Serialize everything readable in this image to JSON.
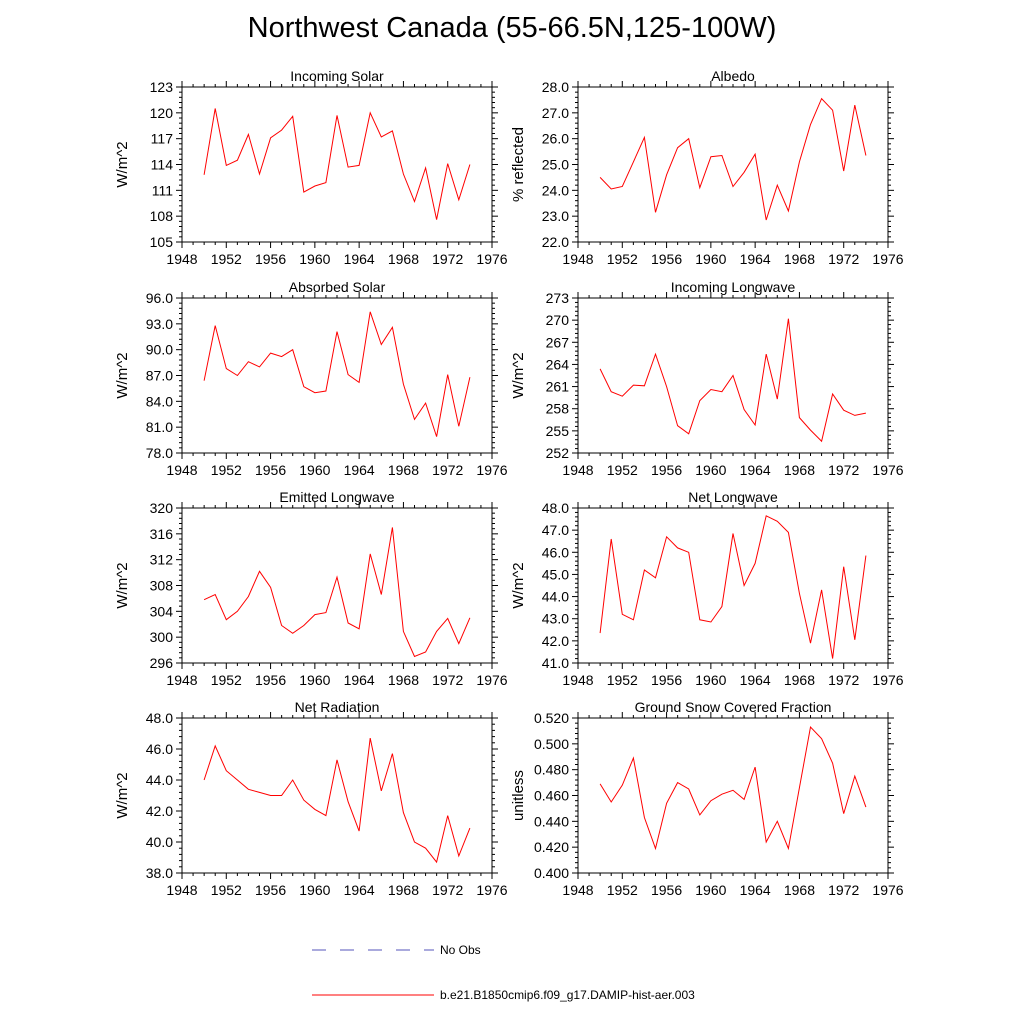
{
  "title": "Northwest Canada (55-66.5N,125-100W)",
  "colors": {
    "model_line": "#ff0000",
    "obs_line": "#5555bb",
    "axis": "#000000"
  },
  "legend": [
    {
      "label": "No Obs",
      "style": "dashed",
      "color": "#5555bb"
    },
    {
      "label": "b.e21.B1850cmip6.f09_g17.DAMIP-hist-aer.003",
      "style": "solid",
      "color": "#ff0000"
    }
  ],
  "chart_data": [
    {
      "type": "line",
      "title": "Incoming Solar",
      "xlabel": "",
      "ylabel": "W/m^2",
      "xlim": [
        1948,
        1976
      ],
      "ylim": [
        105,
        123
      ],
      "xticks": [
        "1948",
        "1952",
        "1956",
        "1960",
        "1964",
        "1968",
        "1972",
        "1976"
      ],
      "yticks": [
        "105",
        "108",
        "111",
        "114",
        "117",
        "120",
        "123"
      ],
      "x": [
        1950,
        1951,
        1952,
        1953,
        1954,
        1955,
        1956,
        1957,
        1958,
        1959,
        1960,
        1961,
        1962,
        1963,
        1964,
        1965,
        1966,
        1967,
        1968,
        1969,
        1970,
        1971,
        1972,
        1973,
        1974
      ],
      "series": [
        {
          "name": "b.e21.B1850cmip6.f09_g17.DAMIP-hist-aer.003",
          "values": [
            112.8,
            120.5,
            113.9,
            114.5,
            117.5,
            112.9,
            117.1,
            118.0,
            119.6,
            110.8,
            111.5,
            111.9,
            119.7,
            113.7,
            113.9,
            120.0,
            117.2,
            117.9,
            112.9,
            109.7,
            113.6,
            107.6,
            114.1,
            109.9,
            114.0
          ]
        }
      ]
    },
    {
      "type": "line",
      "title": "Albedo",
      "xlabel": "",
      "ylabel": "% reflected",
      "xlim": [
        1948,
        1976
      ],
      "ylim": [
        22.0,
        28.0
      ],
      "xticks": [
        "1948",
        "1952",
        "1956",
        "1960",
        "1964",
        "1968",
        "1972",
        "1976"
      ],
      "yticks": [
        "22.0",
        "23.0",
        "24.0",
        "25.0",
        "26.0",
        "27.0",
        "28.0"
      ],
      "x": [
        1950,
        1951,
        1952,
        1953,
        1954,
        1955,
        1956,
        1957,
        1958,
        1959,
        1960,
        1961,
        1962,
        1963,
        1964,
        1965,
        1966,
        1967,
        1968,
        1969,
        1970,
        1971,
        1972,
        1973,
        1974
      ],
      "series": [
        {
          "name": "b.e21.B1850cmip6.f09_g17.DAMIP-hist-aer.003",
          "values": [
            24.5,
            24.05,
            24.15,
            25.1,
            26.05,
            23.15,
            24.6,
            25.65,
            26.0,
            24.1,
            25.3,
            25.35,
            24.15,
            24.7,
            25.4,
            22.85,
            24.2,
            23.2,
            25.1,
            26.55,
            27.55,
            27.1,
            24.75,
            27.3,
            25.35
          ]
        }
      ]
    },
    {
      "type": "line",
      "title": "Absorbed Solar",
      "xlabel": "",
      "ylabel": "W/m^2",
      "xlim": [
        1948,
        1976
      ],
      "ylim": [
        78.0,
        96.0
      ],
      "xticks": [
        "1948",
        "1952",
        "1956",
        "1960",
        "1964",
        "1968",
        "1972",
        "1976"
      ],
      "yticks": [
        "78.0",
        "81.0",
        "84.0",
        "87.0",
        "90.0",
        "93.0",
        "96.0"
      ],
      "x": [
        1950,
        1951,
        1952,
        1953,
        1954,
        1955,
        1956,
        1957,
        1958,
        1959,
        1960,
        1961,
        1962,
        1963,
        1964,
        1965,
        1966,
        1967,
        1968,
        1969,
        1970,
        1971,
        1972,
        1973,
        1974
      ],
      "series": [
        {
          "name": "b.e21.B1850cmip6.f09_g17.DAMIP-hist-aer.003",
          "values": [
            86.4,
            92.8,
            87.8,
            87.0,
            88.6,
            88.0,
            89.6,
            89.2,
            90.0,
            85.7,
            85.0,
            85.2,
            92.1,
            87.1,
            86.2,
            94.4,
            90.6,
            92.6,
            86.0,
            81.9,
            83.8,
            79.9,
            87.1,
            81.1,
            86.8
          ]
        }
      ]
    },
    {
      "type": "line",
      "title": "Incoming Longwave",
      "xlabel": "",
      "ylabel": "W/m^2",
      "xlim": [
        1948,
        1976
      ],
      "ylim": [
        252,
        273
      ],
      "xticks": [
        "1948",
        "1952",
        "1956",
        "1960",
        "1964",
        "1968",
        "1972",
        "1976"
      ],
      "yticks": [
        "252",
        "255",
        "258",
        "261",
        "264",
        "267",
        "270",
        "273"
      ],
      "x": [
        1950,
        1951,
        1952,
        1953,
        1954,
        1955,
        1956,
        1957,
        1958,
        1959,
        1960,
        1961,
        1962,
        1963,
        1964,
        1965,
        1966,
        1967,
        1968,
        1969,
        1970,
        1971,
        1972,
        1973,
        1974
      ],
      "series": [
        {
          "name": "b.e21.B1850cmip6.f09_g17.DAMIP-hist-aer.003",
          "values": [
            263.4,
            260.3,
            259.7,
            261.2,
            261.1,
            265.4,
            261.0,
            255.7,
            254.6,
            259.1,
            260.6,
            260.3,
            262.5,
            257.9,
            255.8,
            265.4,
            259.3,
            270.2,
            256.8,
            255.1,
            253.6,
            260.0,
            257.8,
            257.1,
            257.4
          ]
        }
      ]
    },
    {
      "type": "line",
      "title": "Emitted Longwave",
      "xlabel": "",
      "ylabel": "W/m^2",
      "xlim": [
        1948,
        1976
      ],
      "ylim": [
        296,
        320
      ],
      "xticks": [
        "1948",
        "1952",
        "1956",
        "1960",
        "1964",
        "1968",
        "1972",
        "1976"
      ],
      "yticks": [
        "296",
        "300",
        "304",
        "308",
        "312",
        "316",
        "320"
      ],
      "x": [
        1950,
        1951,
        1952,
        1953,
        1954,
        1955,
        1956,
        1957,
        1958,
        1959,
        1960,
        1961,
        1962,
        1963,
        1964,
        1965,
        1966,
        1967,
        1968,
        1969,
        1970,
        1971,
        1972,
        1973,
        1974
      ],
      "series": [
        {
          "name": "b.e21.B1850cmip6.f09_g17.DAMIP-hist-aer.003",
          "values": [
            305.8,
            306.6,
            302.7,
            304.0,
            306.3,
            310.2,
            307.7,
            301.8,
            300.6,
            301.8,
            303.5,
            303.8,
            309.3,
            302.2,
            301.3,
            312.9,
            306.6,
            317.0,
            300.9,
            297.0,
            297.7,
            300.9,
            302.9,
            299.0,
            303.0
          ]
        }
      ]
    },
    {
      "type": "line",
      "title": "Net Longwave",
      "xlabel": "",
      "ylabel": "W/m^2",
      "xlim": [
        1948,
        1976
      ],
      "ylim": [
        41.0,
        48.0
      ],
      "xticks": [
        "1948",
        "1952",
        "1956",
        "1960",
        "1964",
        "1968",
        "1972",
        "1976"
      ],
      "yticks": [
        "41.0",
        "42.0",
        "43.0",
        "44.0",
        "45.0",
        "46.0",
        "47.0",
        "48.0"
      ],
      "x": [
        1950,
        1951,
        1952,
        1953,
        1954,
        1955,
        1956,
        1957,
        1958,
        1959,
        1960,
        1961,
        1962,
        1963,
        1964,
        1965,
        1966,
        1967,
        1968,
        1969,
        1970,
        1971,
        1972,
        1973,
        1974
      ],
      "series": [
        {
          "name": "b.e21.B1850cmip6.f09_g17.DAMIP-hist-aer.003",
          "values": [
            42.35,
            46.6,
            43.2,
            42.95,
            45.2,
            44.85,
            46.7,
            46.2,
            46.0,
            42.95,
            42.85,
            43.55,
            46.85,
            44.5,
            45.5,
            47.65,
            47.4,
            46.9,
            44.15,
            41.9,
            44.3,
            41.2,
            45.35,
            42.05,
            45.85
          ]
        }
      ]
    },
    {
      "type": "line",
      "title": "Net Radiation",
      "xlabel": "",
      "ylabel": "W/m^2",
      "xlim": [
        1948,
        1976
      ],
      "ylim": [
        38.0,
        48.0
      ],
      "xticks": [
        "1948",
        "1952",
        "1956",
        "1960",
        "1964",
        "1968",
        "1972",
        "1976"
      ],
      "yticks": [
        "38.0",
        "40.0",
        "42.0",
        "44.0",
        "46.0",
        "48.0"
      ],
      "x": [
        1950,
        1951,
        1952,
        1953,
        1954,
        1955,
        1956,
        1957,
        1958,
        1959,
        1960,
        1961,
        1962,
        1963,
        1964,
        1965,
        1966,
        1967,
        1968,
        1969,
        1970,
        1971,
        1972,
        1973,
        1974
      ],
      "series": [
        {
          "name": "b.e21.B1850cmip6.f09_g17.DAMIP-hist-aer.003",
          "values": [
            44.0,
            46.2,
            44.6,
            44.0,
            43.4,
            43.2,
            43.0,
            43.0,
            44.0,
            42.7,
            42.1,
            41.7,
            45.3,
            42.6,
            40.7,
            46.7,
            43.3,
            45.7,
            41.9,
            40.0,
            39.6,
            38.7,
            41.7,
            39.1,
            40.9
          ]
        }
      ]
    },
    {
      "type": "line",
      "title": "Ground Snow Covered Fraction",
      "xlabel": "",
      "ylabel": "unitless",
      "xlim": [
        1948,
        1976
      ],
      "ylim": [
        0.4,
        0.52
      ],
      "xticks": [
        "1948",
        "1952",
        "1956",
        "1960",
        "1964",
        "1968",
        "1972",
        "1976"
      ],
      "yticks": [
        "0.400",
        "0.420",
        "0.440",
        "0.460",
        "0.480",
        "0.500",
        "0.520"
      ],
      "x": [
        1950,
        1951,
        1952,
        1953,
        1954,
        1955,
        1956,
        1957,
        1958,
        1959,
        1960,
        1961,
        1962,
        1963,
        1964,
        1965,
        1966,
        1967,
        1968,
        1969,
        1970,
        1971,
        1972,
        1973,
        1974
      ],
      "series": [
        {
          "name": "b.e21.B1850cmip6.f09_g17.DAMIP-hist-aer.003",
          "values": [
            0.469,
            0.455,
            0.468,
            0.489,
            0.443,
            0.419,
            0.454,
            0.47,
            0.465,
            0.445,
            0.456,
            0.461,
            0.464,
            0.457,
            0.482,
            0.424,
            0.44,
            0.419,
            0.466,
            0.513,
            0.504,
            0.485,
            0.446,
            0.475,
            0.451
          ]
        }
      ]
    }
  ]
}
